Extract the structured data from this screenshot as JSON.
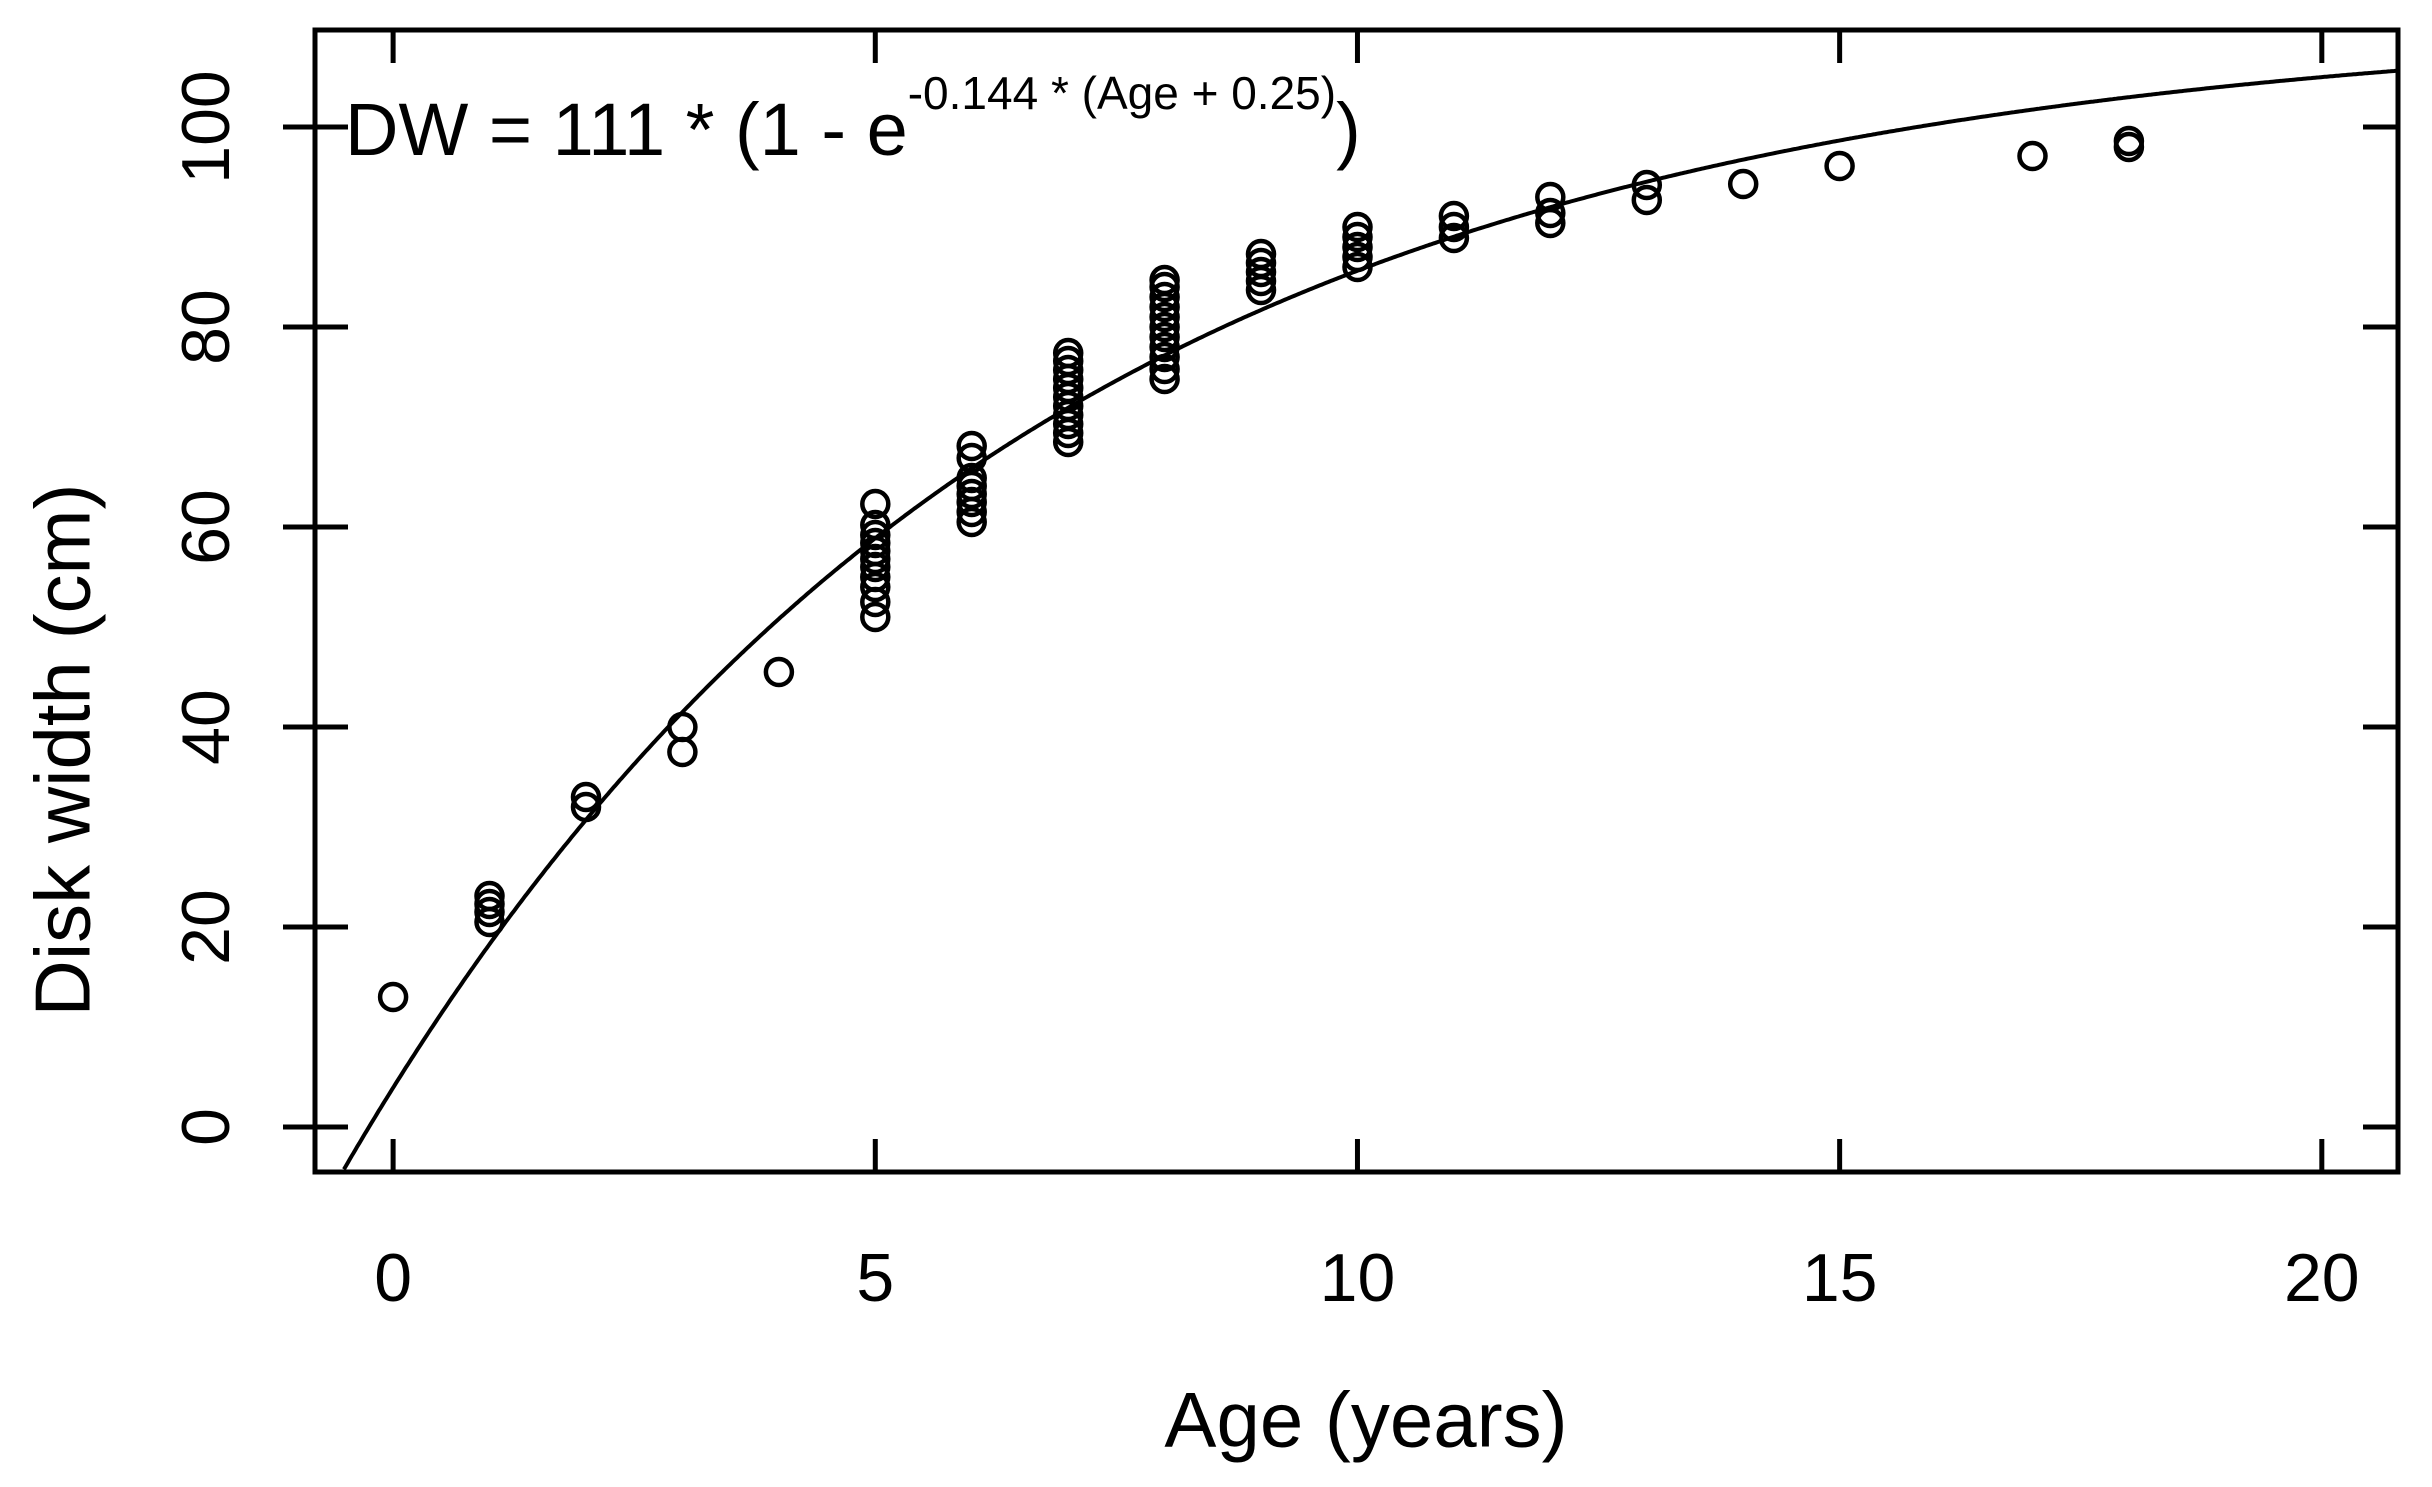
{
  "colors": {
    "foreground": "#000000",
    "background": "#ffffff"
  },
  "chart_data": {
    "type": "scatter",
    "title": "",
    "equation": {
      "main": "DW = 111 * (1 - e",
      "superscript": "-0.144 * (Age + 0.25)",
      "close": ")"
    },
    "xlabel": "Age (years)",
    "ylabel": "Disk width (cm)",
    "x_ticks": [
      0,
      5,
      10,
      15,
      20
    ],
    "y_ticks": [
      0,
      20,
      40,
      60,
      80,
      100
    ],
    "xlim": [
      -0.81,
      20.79
    ],
    "ylim": [
      -4.5,
      109.7
    ],
    "grid": "off",
    "legend": "none",
    "marker": "open-circle",
    "fit_curve": {
      "model": "DW = Linf * (1 - exp(-k * (Age + a0)))",
      "Linf": 111,
      "k": 0.144,
      "a0": 0.25
    },
    "points": [
      {
        "age": 0,
        "dw": [
          13
        ]
      },
      {
        "age": 1,
        "dw": [
          20.5,
          21.5,
          22.3,
          23.1
        ]
      },
      {
        "age": 2,
        "dw": [
          32,
          33
        ]
      },
      {
        "age": 3,
        "dw": [
          37.5,
          40
        ]
      },
      {
        "age": 4,
        "dw": [
          45.5
        ]
      },
      {
        "age": 5,
        "dw": [
          51,
          52.5,
          54,
          55,
          56,
          56.8,
          57.6,
          58.4,
          59.2,
          60.2,
          62.3
        ]
      },
      {
        "age": 6,
        "dw": [
          60.5,
          61.5,
          62.5,
          63.3,
          64.1,
          64.9,
          66.9,
          68.1
        ]
      },
      {
        "age": 7,
        "dw": [
          68.5,
          69.4,
          70.3,
          71.2,
          72.1,
          73,
          73.9,
          74.8,
          75.7,
          76.6,
          77.4
        ]
      },
      {
        "age": 8,
        "dw": [
          74.8,
          75.8,
          77,
          78,
          79,
          80,
          81,
          82,
          83,
          84,
          84.7
        ]
      },
      {
        "age": 9,
        "dw": [
          83.7,
          84.6,
          85.5,
          86.4,
          87.3
        ]
      },
      {
        "age": 10,
        "dw": [
          86,
          87,
          88,
          89,
          90
        ]
      },
      {
        "age": 11,
        "dw": [
          88.9,
          90,
          91.1
        ]
      },
      {
        "age": 12,
        "dw": [
          90.4,
          91.4,
          93
        ]
      },
      {
        "age": 13,
        "dw": [
          92.7,
          94.2
        ]
      },
      {
        "age": 14,
        "dw": [
          94.3
        ]
      },
      {
        "age": 15,
        "dw": [
          96.1
        ]
      },
      {
        "age": 17,
        "dw": [
          97.1
        ]
      },
      {
        "age": 18,
        "dw": [
          98,
          98.6
        ]
      }
    ]
  }
}
